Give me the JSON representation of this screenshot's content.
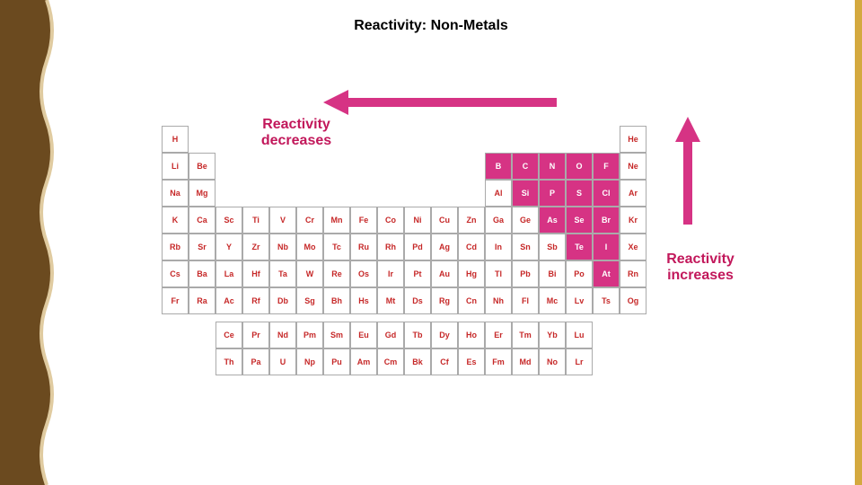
{
  "title": {
    "text": "Reactivity: Non-Metals",
    "fontsize": 16,
    "color": "#000000"
  },
  "labels": {
    "decreases": {
      "line1": "Reactivity",
      "line2": "decreases",
      "color": "#c2185b",
      "fontsize": 16
    },
    "increases": {
      "line1": "Reactivity",
      "line2": "increases",
      "color": "#c2185b",
      "fontsize": 16
    }
  },
  "arrows": {
    "horizontal": {
      "color": "#d63384",
      "direction": "left",
      "stroke_width": 10
    },
    "vertical": {
      "color": "#d63384",
      "direction": "up",
      "stroke_width": 10
    }
  },
  "borders": {
    "left_wave": {
      "fill": "#6b4a1f",
      "stroke": "#e0cba0",
      "wave_amplitude": 12,
      "wave_count": 8
    },
    "right_bar": {
      "fill": "#d4a93f",
      "width": 8
    }
  },
  "periodic_table": {
    "highlight_color": "#d63384",
    "cell_border": "#aaaaaa",
    "cell_bg": "#ffffff",
    "symbol_color": "#c62828",
    "layout_note": "18 columns, 7 main rows + 2 lanthanide/actinide rows; nonmetals region (upper-right staircase) highlighted",
    "rows": [
      [
        {
          "s": "H"
        },
        null,
        null,
        null,
        null,
        null,
        null,
        null,
        null,
        null,
        null,
        null,
        null,
        null,
        null,
        null,
        null,
        {
          "s": "He"
        }
      ],
      [
        {
          "s": "Li"
        },
        {
          "s": "Be"
        },
        null,
        null,
        null,
        null,
        null,
        null,
        null,
        null,
        null,
        null,
        {
          "s": "B",
          "hl": true
        },
        {
          "s": "C",
          "hl": true
        },
        {
          "s": "N",
          "hl": true
        },
        {
          "s": "O",
          "hl": true
        },
        {
          "s": "F",
          "hl": true
        },
        {
          "s": "Ne"
        }
      ],
      [
        {
          "s": "Na"
        },
        {
          "s": "Mg"
        },
        null,
        null,
        null,
        null,
        null,
        null,
        null,
        null,
        null,
        null,
        {
          "s": "Al"
        },
        {
          "s": "Si",
          "hl": true
        },
        {
          "s": "P",
          "hl": true
        },
        {
          "s": "S",
          "hl": true
        },
        {
          "s": "Cl",
          "hl": true
        },
        {
          "s": "Ar"
        }
      ],
      [
        {
          "s": "K"
        },
        {
          "s": "Ca"
        },
        {
          "s": "Sc"
        },
        {
          "s": "Ti"
        },
        {
          "s": "V"
        },
        {
          "s": "Cr"
        },
        {
          "s": "Mn"
        },
        {
          "s": "Fe"
        },
        {
          "s": "Co"
        },
        {
          "s": "Ni"
        },
        {
          "s": "Cu"
        },
        {
          "s": "Zn"
        },
        {
          "s": "Ga"
        },
        {
          "s": "Ge"
        },
        {
          "s": "As",
          "hl": true
        },
        {
          "s": "Se",
          "hl": true
        },
        {
          "s": "Br",
          "hl": true
        },
        {
          "s": "Kr"
        }
      ],
      [
        {
          "s": "Rb"
        },
        {
          "s": "Sr"
        },
        {
          "s": "Y"
        },
        {
          "s": "Zr"
        },
        {
          "s": "Nb"
        },
        {
          "s": "Mo"
        },
        {
          "s": "Tc"
        },
        {
          "s": "Ru"
        },
        {
          "s": "Rh"
        },
        {
          "s": "Pd"
        },
        {
          "s": "Ag"
        },
        {
          "s": "Cd"
        },
        {
          "s": "In"
        },
        {
          "s": "Sn"
        },
        {
          "s": "Sb"
        },
        {
          "s": "Te",
          "hl": true
        },
        {
          "s": "I",
          "hl": true
        },
        {
          "s": "Xe"
        }
      ],
      [
        {
          "s": "Cs"
        },
        {
          "s": "Ba"
        },
        {
          "s": "La"
        },
        {
          "s": "Hf"
        },
        {
          "s": "Ta"
        },
        {
          "s": "W"
        },
        {
          "s": "Re"
        },
        {
          "s": "Os"
        },
        {
          "s": "Ir"
        },
        {
          "s": "Pt"
        },
        {
          "s": "Au"
        },
        {
          "s": "Hg"
        },
        {
          "s": "Tl"
        },
        {
          "s": "Pb"
        },
        {
          "s": "Bi"
        },
        {
          "s": "Po"
        },
        {
          "s": "At",
          "hl": true
        },
        {
          "s": "Rn"
        }
      ],
      [
        {
          "s": "Fr"
        },
        {
          "s": "Ra"
        },
        {
          "s": "Ac"
        },
        {
          "s": "Rf"
        },
        {
          "s": "Db"
        },
        {
          "s": "Sg"
        },
        {
          "s": "Bh"
        },
        {
          "s": "Hs"
        },
        {
          "s": "Mt"
        },
        {
          "s": "Ds"
        },
        {
          "s": "Rg"
        },
        {
          "s": "Cn"
        },
        {
          "s": "Nh"
        },
        {
          "s": "Fl"
        },
        {
          "s": "Mc"
        },
        {
          "s": "Lv"
        },
        {
          "s": "Ts"
        },
        {
          "s": "Og"
        }
      ]
    ],
    "lanthanides": [
      {
        "s": "Ce"
      },
      {
        "s": "Pr"
      },
      {
        "s": "Nd"
      },
      {
        "s": "Pm"
      },
      {
        "s": "Sm"
      },
      {
        "s": "Eu"
      },
      {
        "s": "Gd"
      },
      {
        "s": "Tb"
      },
      {
        "s": "Dy"
      },
      {
        "s": "Ho"
      },
      {
        "s": "Er"
      },
      {
        "s": "Tm"
      },
      {
        "s": "Yb"
      },
      {
        "s": "Lu"
      }
    ],
    "actinides": [
      {
        "s": "Th"
      },
      {
        "s": "Pa"
      },
      {
        "s": "U"
      },
      {
        "s": "Np"
      },
      {
        "s": "Pu"
      },
      {
        "s": "Am"
      },
      {
        "s": "Cm"
      },
      {
        "s": "Bk"
      },
      {
        "s": "Cf"
      },
      {
        "s": "Es"
      },
      {
        "s": "Fm"
      },
      {
        "s": "Md"
      },
      {
        "s": "No"
      },
      {
        "s": "Lr"
      }
    ]
  }
}
